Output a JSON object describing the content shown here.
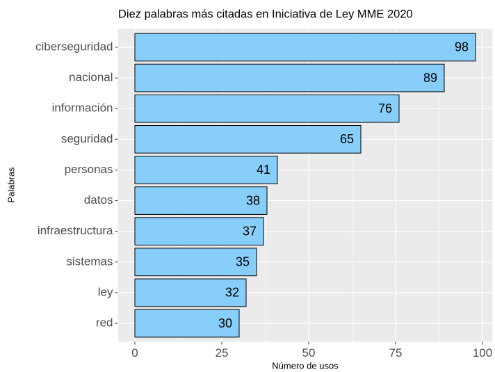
{
  "chart_data": {
    "type": "bar",
    "orientation": "horizontal",
    "title": "Diez palabras más citadas en Iniciativa de Ley MME 2020",
    "xlabel": "Número de usos",
    "ylabel": "Palabras",
    "categories": [
      "ciberseguridad",
      "nacional",
      "información",
      "seguridad",
      "personas",
      "datos",
      "infraestructura",
      "sistemas",
      "ley",
      "red"
    ],
    "values": [
      98,
      89,
      76,
      65,
      41,
      38,
      37,
      35,
      32,
      30
    ],
    "color": "#87CEFA",
    "xlim": [
      -4.9,
      102.9
    ],
    "xticks": [
      0,
      25,
      50,
      75,
      100
    ],
    "grid": true
  }
}
